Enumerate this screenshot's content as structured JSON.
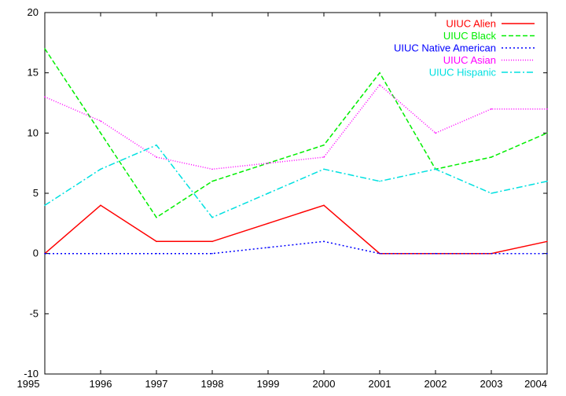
{
  "chart_data": {
    "type": "line",
    "title": "",
    "xlabel": "",
    "ylabel": "",
    "x": [
      1995,
      1996,
      1997,
      1998,
      1999,
      2000,
      2001,
      2002,
      2003,
      2004
    ],
    "xlim": [
      1995,
      2004
    ],
    "ylim": [
      -10,
      20
    ],
    "yticks": [
      -10,
      -5,
      0,
      5,
      10,
      15,
      20
    ],
    "xticks": [
      1995,
      1996,
      1997,
      1998,
      1999,
      2000,
      2001,
      2002,
      2003,
      2004
    ],
    "grid": false,
    "legend_position": "top-right",
    "series": [
      {
        "name": "UIUC Alien",
        "color": "#ff0000",
        "dash": "solid",
        "values": [
          0,
          4,
          1,
          1,
          2.5,
          4,
          0,
          0,
          0,
          1
        ]
      },
      {
        "name": "UIUC Black",
        "color": "#00ee00",
        "dash": "dashed",
        "values": [
          17,
          10,
          3,
          6,
          7.5,
          9,
          15,
          7,
          8,
          10
        ]
      },
      {
        "name": "UIUC Native American",
        "color": "#0000ff",
        "dash": "dotted",
        "values": [
          0,
          0,
          0,
          0,
          0.5,
          1,
          0,
          0,
          0,
          0
        ]
      },
      {
        "name": "UIUC Asian",
        "color": "#ff00ff",
        "dash": "fine-dotted",
        "values": [
          13,
          11,
          8,
          7,
          7.5,
          8,
          14,
          10,
          12,
          12
        ]
      },
      {
        "name": "UIUC Hispanic",
        "color": "#00e0e0",
        "dash": "dash-dot",
        "values": [
          4,
          7,
          9,
          3,
          5,
          7,
          6,
          7,
          5,
          6
        ]
      }
    ]
  }
}
